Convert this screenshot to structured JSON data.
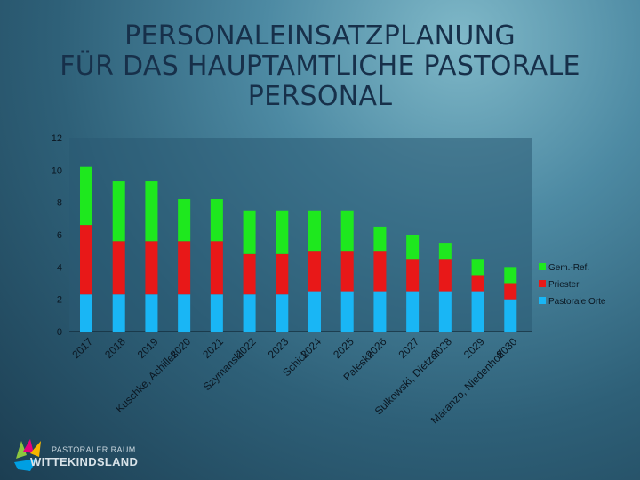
{
  "title_lines": [
    "PERSONALEINSATZPLANUNG",
    "FÜR DAS HAUPTAMTLICHE PASTORALE",
    "PERSONAL"
  ],
  "chart_data": {
    "type": "bar",
    "stacked": true,
    "title": "PERSONALEINSATZPLANUNG FÜR DAS HAUPTAMTLICHE PASTORALE PERSONAL",
    "categories": [
      "2017",
      "2018",
      "2019",
      "2020",
      "2021",
      "2022",
      "2023",
      "2024",
      "2025",
      "2026",
      "2027",
      "2028",
      "2029",
      "2030"
    ],
    "category_notes": [
      "",
      "",
      "",
      "Kuschke, Achilles",
      "",
      "Szymanski",
      "",
      "Schick",
      "",
      "Paleske",
      "",
      "Sulkowski, Dietzel",
      "",
      "Maranzo, Niedenhoff"
    ],
    "series": [
      {
        "name": "Pastorale Orte",
        "color": "#19b6f5",
        "values": [
          2.3,
          2.3,
          2.3,
          2.3,
          2.3,
          2.3,
          2.3,
          2.5,
          2.5,
          2.5,
          2.5,
          2.5,
          2.5,
          2.0
        ]
      },
      {
        "name": "Priester",
        "color": "#e81818",
        "values": [
          4.3,
          3.3,
          3.3,
          3.3,
          3.3,
          2.5,
          2.5,
          2.5,
          2.5,
          2.5,
          2.0,
          2.0,
          1.0,
          1.0
        ]
      },
      {
        "name": "Gem.-Ref.",
        "color": "#1ee81e",
        "values": [
          3.6,
          3.7,
          3.7,
          2.6,
          2.6,
          2.7,
          2.7,
          2.5,
          2.5,
          1.5,
          1.5,
          1.0,
          1.0,
          1.0
        ]
      }
    ],
    "legend_order": [
      "Gem.-Ref.",
      "Priester",
      "Pastorale Orte"
    ],
    "legend_position": "right",
    "ylim": [
      0,
      12
    ],
    "yticks": [
      0,
      2,
      4,
      6,
      8,
      10,
      12
    ],
    "grid": false,
    "xlabel": "",
    "ylabel": ""
  },
  "logo": {
    "line1": "PASTORALER RAUM",
    "line2": "WITTEKINDSLAND",
    "colors": [
      "#8cc63f",
      "#e6007e",
      "#f7b500",
      "#009fe3"
    ]
  }
}
